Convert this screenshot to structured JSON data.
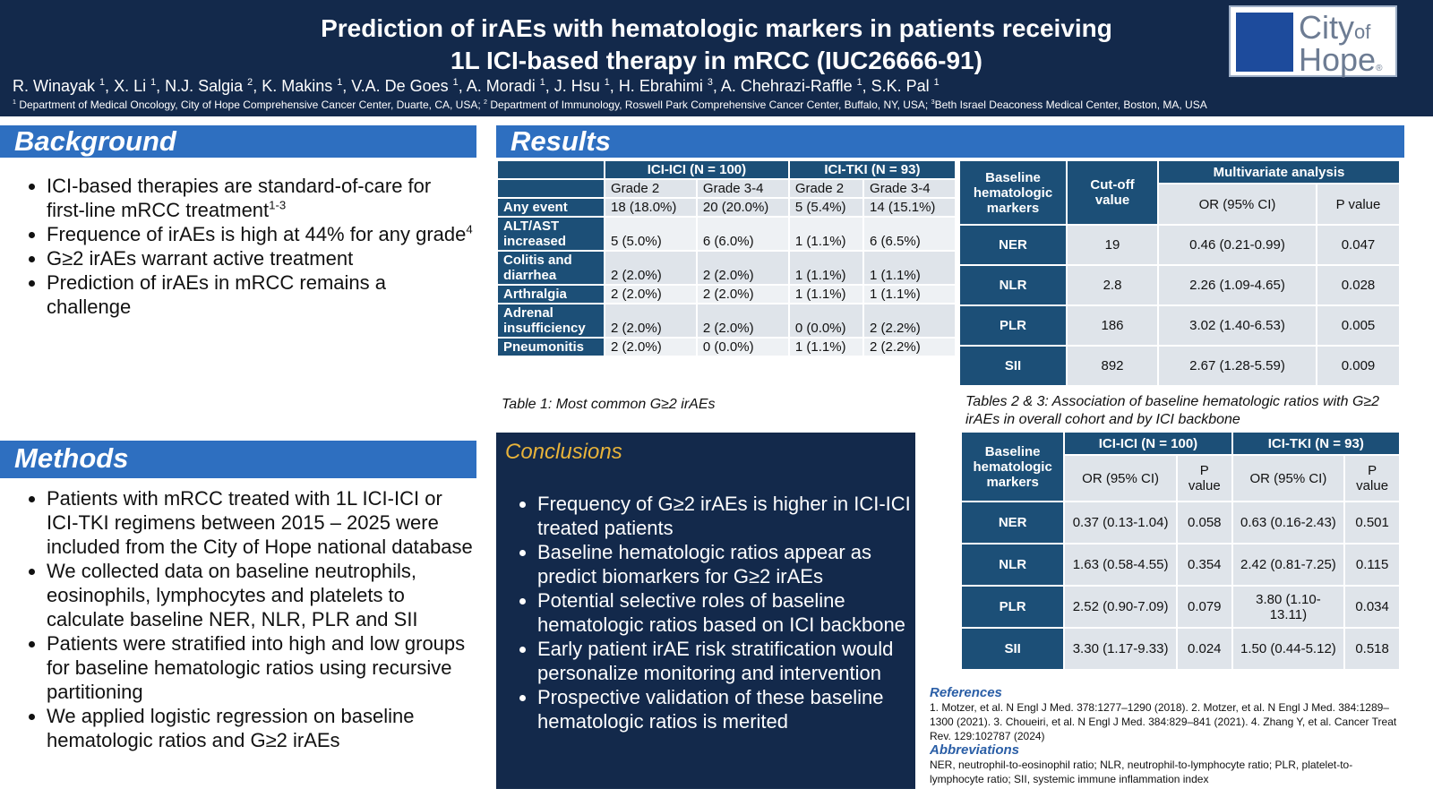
{
  "header": {
    "title_lines": [
      "Prediction of irAEs with hematologic markers in patients receiving",
      "1L ICI-based therapy in mRCC (IUC26666-91)"
    ],
    "authors": [
      {
        "name": "R. Winayak ",
        "sup": "1",
        "sep": ", "
      },
      {
        "name": "X. Li ",
        "sup": "1",
        "sep": ", "
      },
      {
        "name": "N.J. Salgia ",
        "sup": "2",
        "sep": ", "
      },
      {
        "name": "K. Makins ",
        "sup": "1",
        "sep": ", "
      },
      {
        "name": "V.A. De Goes ",
        "sup": "1",
        "sep": ", "
      },
      {
        "name": "A. Moradi ",
        "sup": "1",
        "sep": ", "
      },
      {
        "name": "J. Hsu ",
        "sup": "1",
        "sep": ", "
      },
      {
        "name": "H. Ebrahimi ",
        "sup": "3",
        "sep": ", "
      },
      {
        "name": "A. Chehrazi-Raffle ",
        "sup": "1",
        "sep": ", "
      },
      {
        "name": "S.K. Pal ",
        "sup": "1"
      }
    ],
    "affiliations": [
      {
        "sup": "1",
        "text": " Department of Medical Oncology, City of Hope Comprehensive Cancer Center, Duarte, CA, USA; "
      },
      {
        "sup": "2",
        "text": " Department of Immunology, Roswell Park Comprehensive Cancer Center, Buffalo, NY, USA; "
      },
      {
        "sup": "3",
        "text": "Beth Israel Deaconess Medical Center, Boston, MA, USA"
      }
    ],
    "logo": {
      "city": "City",
      "of": "of",
      "hope": "Hope",
      "mark": "®"
    }
  },
  "background": {
    "heading": "Background",
    "bullets": [
      {
        "text": "ICI-based therapies are standard-of-care for first-line mRCC treatment",
        "sup": "1-3"
      },
      {
        "text": "Frequence of irAEs is high at 44% for any grade",
        "sup": "4"
      },
      {
        "text": "G≥2 irAEs warrant active treatment"
      },
      {
        "text": "Prediction of irAEs in mRCC remains a challenge"
      }
    ]
  },
  "methods": {
    "heading": "Methods",
    "bullets": [
      {
        "text": "Patients with mRCC treated with 1L ICI-ICI or ICI-TKI regimens between 2015 – 2025 were included from the City of Hope national database"
      },
      {
        "text": "We collected data on baseline neutrophils, eosinophils, lymphocytes and platelets to calculate baseline NER, NLR, PLR and SII"
      },
      {
        "text": "Patients were stratified into high and low groups for baseline hematologic ratios using recursive partitioning"
      },
      {
        "text": "We applied logistic regression on baseline hematologic ratios and G≥2 irAEs"
      }
    ]
  },
  "results": {
    "heading": "Results"
  },
  "table1": {
    "group_headers": [
      "ICI-ICI (N = 100)",
      "ICI-TKI (N = 93)"
    ],
    "sub_headers": [
      "Grade 2",
      "Grade 3-4",
      "Grade 2",
      "Grade 3-4"
    ],
    "rows": [
      {
        "label": "Any event",
        "cells": [
          "18 (18.0%)",
          "20 (20.0%)",
          "5 (5.4%)",
          "14 (15.1%)"
        ]
      },
      {
        "label": "ALT/AST increased",
        "cells": [
          "5 (5.0%)",
          "6 (6.0%)",
          "1 (1.1%)",
          "6 (6.5%)"
        ]
      },
      {
        "label": "Colitis and diarrhea",
        "cells": [
          "2 (2.0%)",
          "2 (2.0%)",
          "1 (1.1%)",
          "1 (1.1%)"
        ]
      },
      {
        "label": "Arthralgia",
        "cells": [
          "2 (2.0%)",
          "2 (2.0%)",
          "1 (1.1%)",
          "1 (1.1%)"
        ]
      },
      {
        "label": "Adrenal insufficiency",
        "cells": [
          "2 (2.0%)",
          "2 (2.0%)",
          "0 (0.0%)",
          "2 (2.2%)"
        ]
      },
      {
        "label": "Pneumonitis",
        "cells": [
          "2 (2.0%)",
          "0 (0.0%)",
          "1 (1.1%)",
          "2 (2.2%)"
        ]
      }
    ],
    "caption": "Table 1: Most common G≥2 irAEs"
  },
  "table2": {
    "headers": [
      "Baseline hematologic markers",
      "Cut-off value",
      "Multivariate analysis"
    ],
    "sub_headers": [
      "OR (95% CI)",
      "P value"
    ],
    "rows": [
      [
        "NER",
        "19",
        "0.46 (0.21-0.99)",
        "0.047"
      ],
      [
        "NLR",
        "2.8",
        "2.26 (1.09-4.65)",
        "0.028"
      ],
      [
        "PLR",
        "186",
        "3.02 (1.40-6.53)",
        "0.005"
      ],
      [
        "SII",
        "892",
        "2.67 (1.28-5.59)",
        "0.009"
      ]
    ],
    "caption": "Tables 2 & 3: Association of baseline hematologic ratios with G≥2 irAEs in overall cohort and by ICI backbone"
  },
  "table3": {
    "headers": [
      "Baseline hematologic markers",
      "ICI-ICI (N = 100)",
      "ICI-TKI (N = 93)"
    ],
    "sub_headers": [
      "OR (95% CI)",
      "P value",
      "OR (95% CI)",
      "P value"
    ],
    "rows": [
      [
        "NER",
        "0.37 (0.13-1.04)",
        "0.058",
        "0.63 (0.16-2.43)",
        "0.501"
      ],
      [
        "NLR",
        "1.63 (0.58-4.55)",
        "0.354",
        "2.42 (0.81-7.25)",
        "0.115"
      ],
      [
        "PLR",
        "2.52 (0.90-7.09)",
        "0.079",
        "3.80 (1.10-13.11)",
        "0.034"
      ],
      [
        "SII",
        "3.30 (1.17-9.33)",
        "0.024",
        "1.50 (0.44-5.12)",
        "0.518"
      ]
    ]
  },
  "conclusions": {
    "heading": "Conclusions",
    "bullets": [
      {
        "text": "Frequency of G≥2 irAEs is higher in ICI-ICI treated patients"
      },
      {
        "text": "Baseline hematologic ratios appear as predict biomarkers for G≥2 irAEs"
      },
      {
        "text": "Potential selective roles of baseline hematologic ratios based on ICI backbone"
      },
      {
        "text": "Early patient irAE risk stratification would personalize monitoring and intervention"
      },
      {
        "text": "Prospective validation of these baseline hematologic ratios is merited"
      }
    ]
  },
  "references": {
    "heading": "References",
    "text": "1. Motzer, et al. N Engl J Med. 378:1277–1290 (2018). 2. Motzer, et al. N Engl J Med. 384:1289–1300 (2021). 3. Choueiri, et al. N Engl J Med. 384:829–841 (2021). 4. Zhang Y, et al. Cancer Treat Rev. 129:102787 (2024)"
  },
  "abbreviations": {
    "heading": "Abbreviations",
    "text": "NER, neutrophil-to-eosinophil ratio; NLR, neutrophil-to-lymphocyte ratio; PLR, platelet-to-lymphocyte ratio; SII, systemic immune inflammation index"
  }
}
